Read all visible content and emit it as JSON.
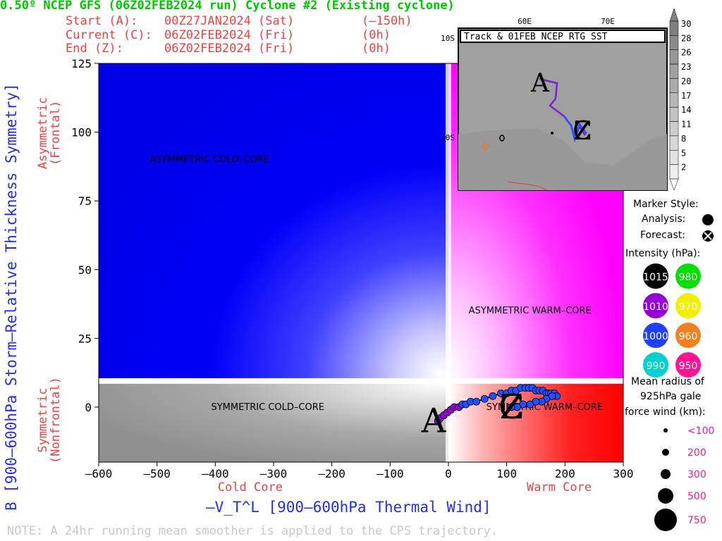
{
  "header": {
    "title": "0.50º NCEP GFS (06Z02FEB2024 run) Cyclone #2 (Existing cyclone)",
    "start": {
      "label": "Start (A):",
      "date": "00Z27JAN2024 (Sat)",
      "offset": "(–150h)"
    },
    "current": {
      "label": "Current (C):",
      "date": "06Z02FEB2024 (Fri)",
      "offset": "(0h)"
    },
    "end": {
      "label": "End (Z):",
      "date": "06Z02FEB2024 (Fri)",
      "offset": "(0h)"
    }
  },
  "chart_data": {
    "type": "scatter",
    "xlabel": "–V_T^L [900–600hPa Thermal Wind]",
    "ylabel": "B [900–600hPa Storm–Relative Thickness Symmetry]",
    "xlim": [
      -600,
      300
    ],
    "ylim": [
      -20,
      125
    ],
    "xticks": [
      "–600",
      "–500",
      "–400",
      "–300",
      "–200",
      "–100",
      "0",
      "100",
      "200",
      "300"
    ],
    "yticks": [
      "125",
      "100",
      "75",
      "50",
      "25",
      "0"
    ],
    "x_side_labels": {
      "left": "Cold Core",
      "right": "Warm Core"
    },
    "y_side_labels": {
      "top": "Asymmetric\n(Frontal)",
      "bottom": "Symmetric\n(Nonfrontal)"
    },
    "quadrant_labels": [
      "ASYMMETRIC COLD–CORE",
      "ASYMMETRIC WARM–CORE",
      "SYMMETRIC COLD–CORE",
      "SYMMETRIC WARM–CORE"
    ],
    "markers": {
      "start": "A",
      "current": "C",
      "end": "Z"
    },
    "trajectory": {
      "x": [
        -18,
        -14,
        -8,
        -2,
        4,
        10,
        18,
        24,
        30,
        38,
        48,
        62,
        76,
        90,
        100,
        108,
        116,
        124,
        132,
        138,
        144,
        150,
        156,
        162,
        168,
        172,
        176,
        182,
        186,
        178,
        168,
        160,
        150,
        140,
        128,
        118,
        108
      ],
      "y": [
        -5,
        -4,
        -3,
        -2,
        -1,
        0,
        0,
        1,
        1,
        2,
        2,
        3,
        4,
        5,
        5,
        6,
        6,
        7,
        7,
        7,
        7,
        6,
        6,
        6,
        5,
        5,
        5,
        5,
        4,
        4,
        3,
        2,
        2,
        1,
        1,
        0,
        0
      ],
      "color": [
        "#9400d3",
        "#9400d3",
        "#9400d3",
        "#9400d3",
        "#9400d3",
        "#9400d3",
        "#9400d3",
        "#2050ff",
        "#2050ff",
        "#2050ff",
        "#2050ff",
        "#2050ff",
        "#2050ff",
        "#2050ff",
        "#2050ff",
        "#2050ff",
        "#2050ff",
        "#2050ff",
        "#2050ff",
        "#2050ff",
        "#2050ff",
        "#2050ff",
        "#2050ff",
        "#2050ff",
        "#2050ff",
        "#2050ff",
        "#2050ff",
        "#2050ff",
        "#2050ff",
        "#2050ff",
        "#2050ff",
        "#2050ff",
        "#2050ff",
        "#2050ff",
        "#2050ff",
        "#2050ff",
        "#2050ff"
      ]
    },
    "shading": {
      "cold_symmetric": "gray",
      "cold_asymmetric": "#0000ff",
      "warm_asymmetric": "#ff00ff",
      "warm_symmetric": "#ff0000"
    }
  },
  "inset_map": {
    "title": "Track & 01FEB NCEP RTG SST",
    "lon_labels": [
      "60E",
      "70E"
    ],
    "lat_labels": [
      "10S",
      "20S"
    ],
    "colorbar_ticks": [
      "30",
      "28",
      "26",
      "23",
      "20",
      "17",
      "14",
      "11",
      "8",
      "5",
      "2"
    ]
  },
  "legend": {
    "marker_style": "Marker Style:",
    "analysis": "Analysis:",
    "forecast": "Forecast:",
    "intensity_title": "Intensity (hPa):",
    "intensity": [
      {
        "label": "1015",
        "color": "#000000"
      },
      {
        "label": "980",
        "color": "#00e000"
      },
      {
        "label": "1010",
        "color": "#9400d3"
      },
      {
        "label": "970",
        "color": "#f0f000"
      },
      {
        "label": "1000",
        "color": "#2040ff"
      },
      {
        "label": "960",
        "color": "#f08020"
      },
      {
        "label": "990",
        "color": "#00d0d0"
      },
      {
        "label": "950",
        "color": "#ff1493"
      }
    ],
    "radius_title_1": "Mean radius of",
    "radius_title_2": "925hPa gale",
    "radius_title_3": "force wind (km):",
    "radius": [
      "<100",
      "200",
      "300",
      "500",
      "750"
    ]
  },
  "note": "NOTE:  A 24hr running mean smoother is applied to the CPS trajectory."
}
